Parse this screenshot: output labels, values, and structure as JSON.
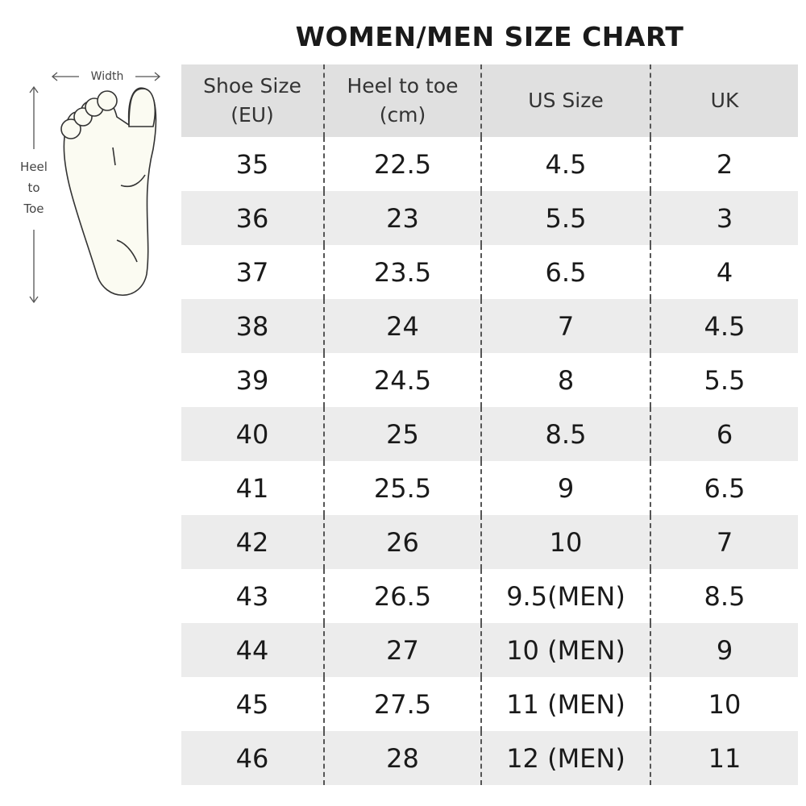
{
  "title": "WOMEN/MEN SIZE CHART",
  "diagram": {
    "width_label": "Width",
    "length_label_lines": [
      "Heel",
      "to",
      "Toe"
    ]
  },
  "table": {
    "headers": [
      [
        "Shoe Size",
        "(EU)"
      ],
      [
        "Heel to toe",
        "(cm)"
      ],
      [
        "US Size",
        ""
      ],
      [
        "UK",
        ""
      ]
    ],
    "rows": [
      [
        "35",
        "22.5",
        "4.5",
        "2"
      ],
      [
        "36",
        "23",
        "5.5",
        "3"
      ],
      [
        "37",
        "23.5",
        "6.5",
        "4"
      ],
      [
        "38",
        "24",
        "7",
        "4.5"
      ],
      [
        "39",
        "24.5",
        "8",
        "5.5"
      ],
      [
        "40",
        "25",
        "8.5",
        "6"
      ],
      [
        "41",
        "25.5",
        "9",
        "6.5"
      ],
      [
        "42",
        "26",
        "10",
        "7"
      ],
      [
        "43",
        "26.5",
        "9.5(MEN)",
        "8.5"
      ],
      [
        "44",
        "27",
        "10 (MEN)",
        "9"
      ],
      [
        "45",
        "27.5",
        "11 (MEN)",
        "10"
      ],
      [
        "46",
        "28",
        "12 (MEN)",
        "11"
      ]
    ]
  },
  "colors": {
    "header_bg": "#e0e0e0",
    "alt_row_bg": "#ececec",
    "foot_fill": "#fbfbf2"
  }
}
